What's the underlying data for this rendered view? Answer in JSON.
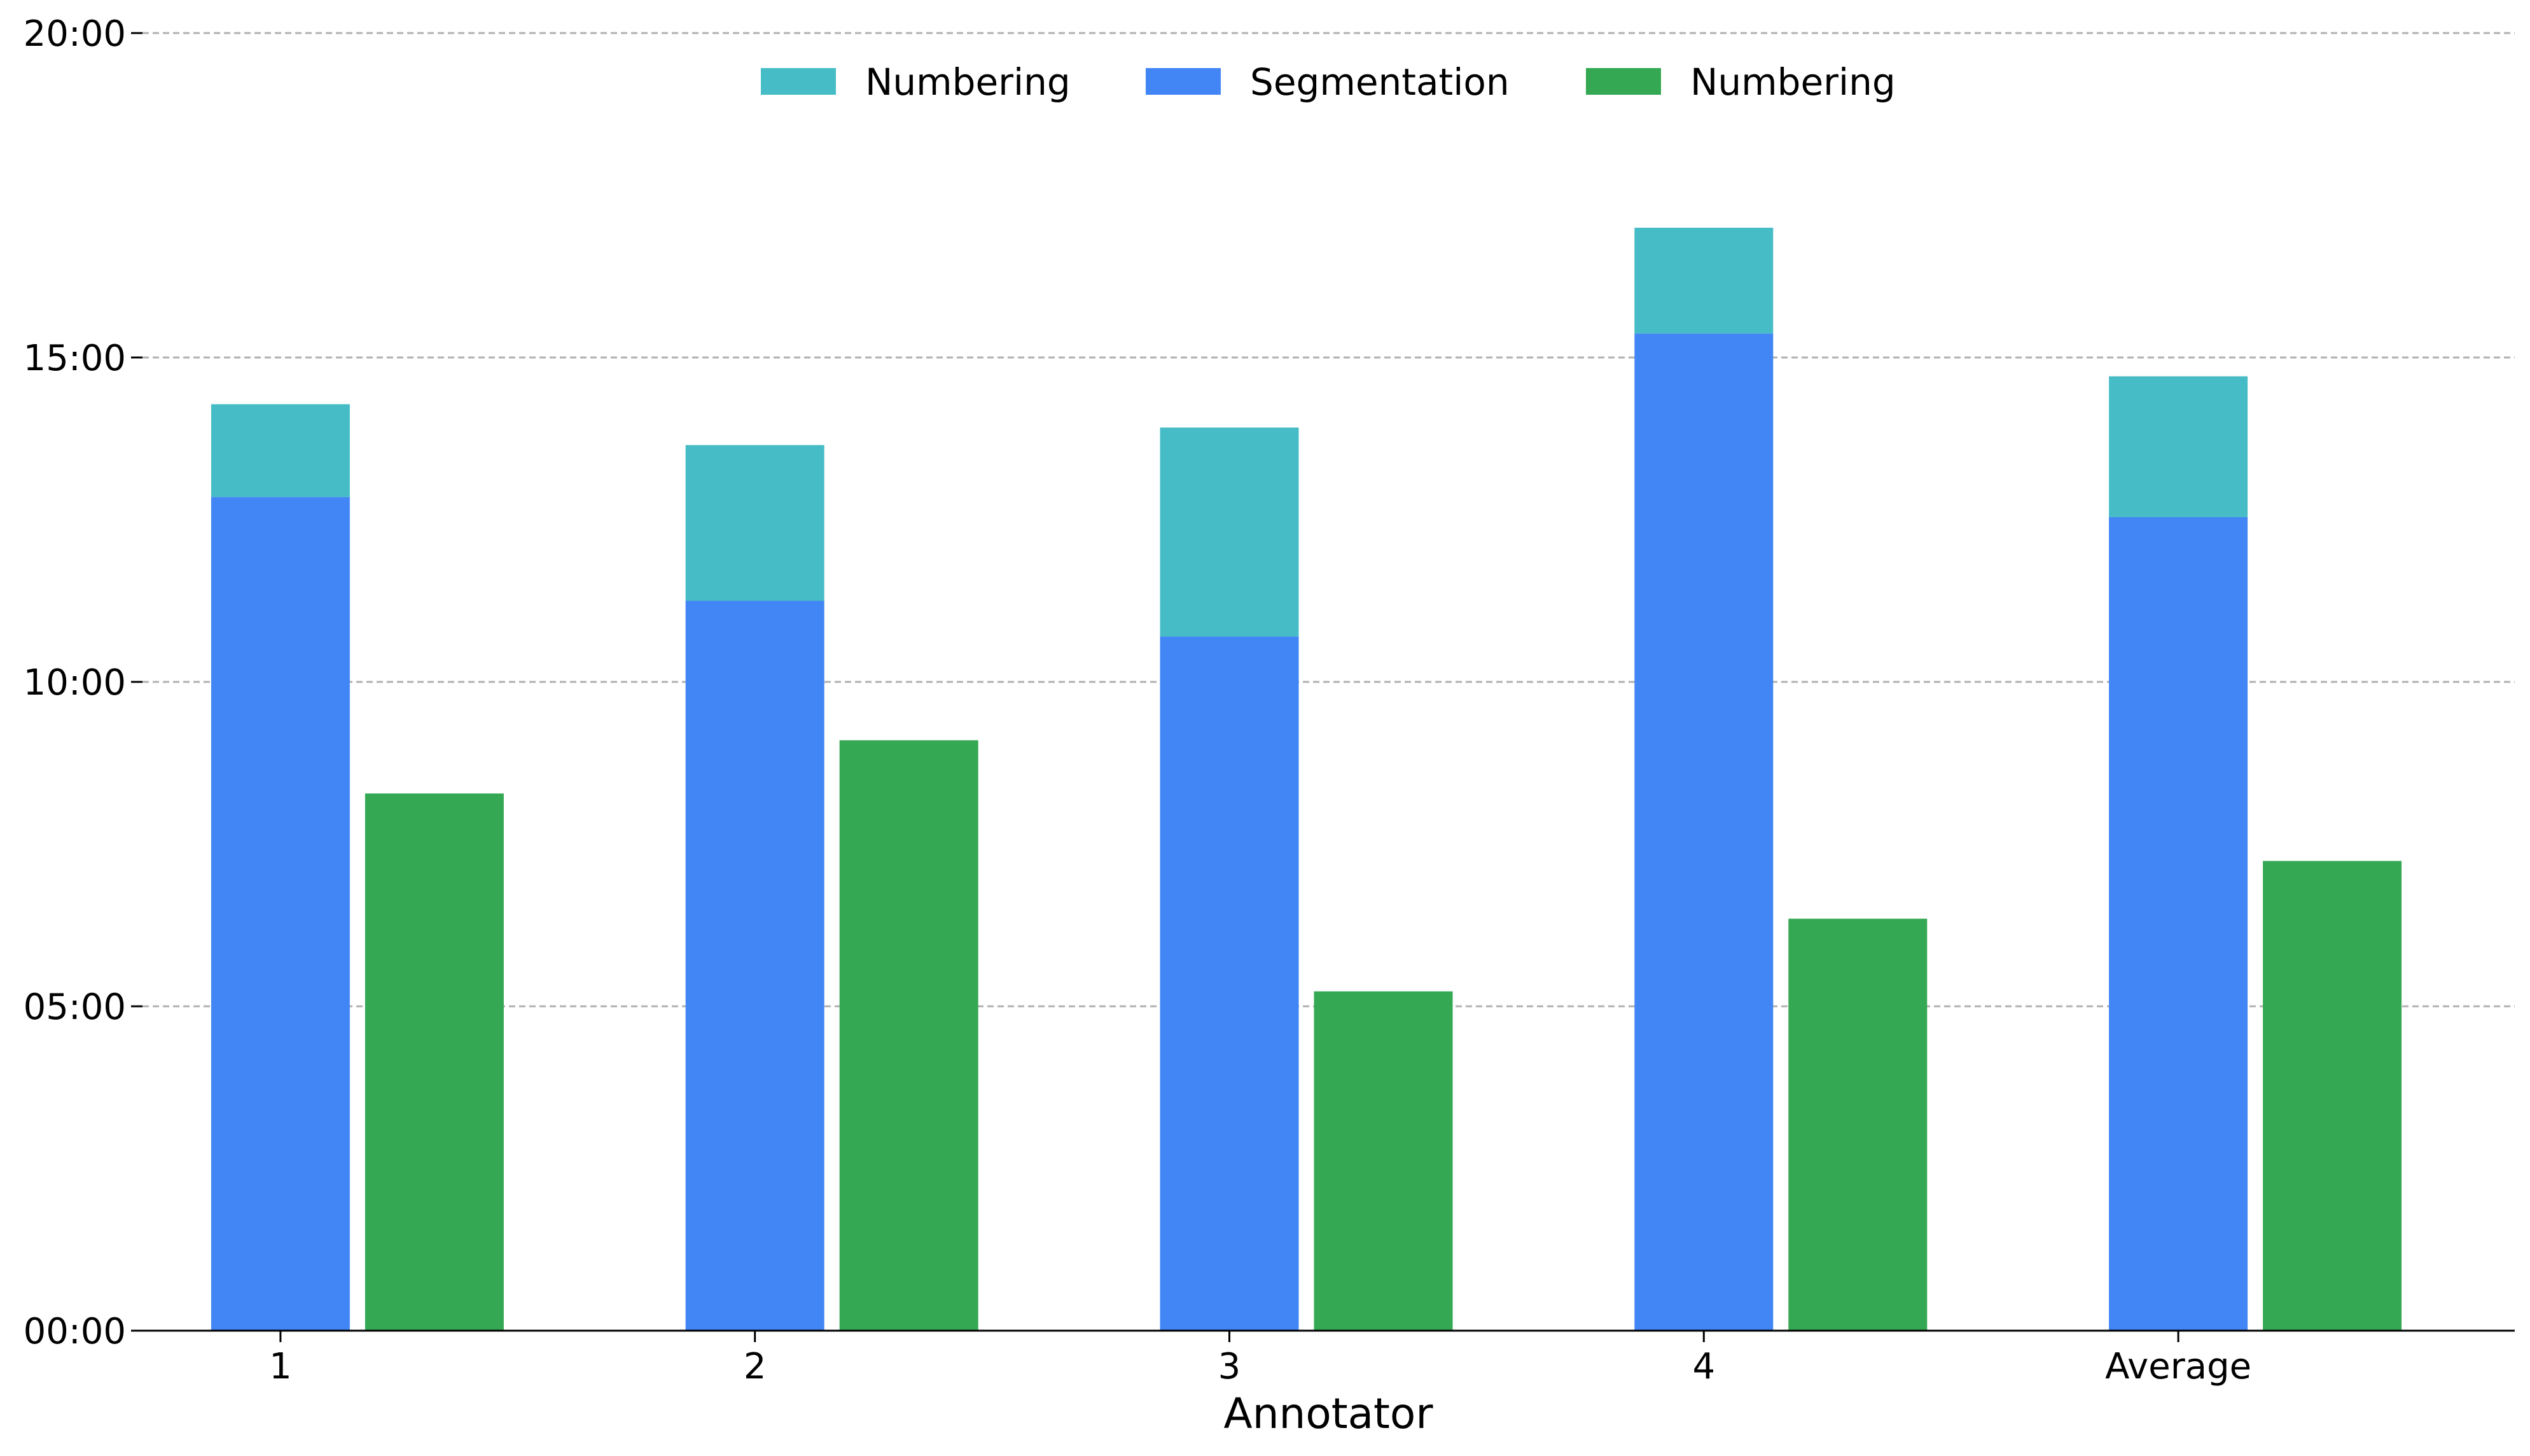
{
  "chart_data": {
    "type": "bar",
    "xlabel": "Annotator",
    "ylabel": "",
    "y_unit": "minutes (mm:ss)",
    "categories": [
      "1",
      "2",
      "3",
      "4",
      "Average"
    ],
    "ylim": [
      0,
      20
    ],
    "y_ticks": [
      0,
      5,
      10,
      15,
      20
    ],
    "y_tick_labels": [
      "00:00",
      "05:00",
      "10:00",
      "15:00",
      "20:00"
    ],
    "grid": "horizontal dashed",
    "legend_placement": "top-center",
    "stacks": [
      {
        "stack": "left",
        "series": [
          {
            "name": "Segmentation",
            "color": "#4285f4",
            "values": [
              12.85,
              11.25,
              10.7,
              15.37,
              12.54
            ]
          },
          {
            "name": "Numbering",
            "color": "#46bdc6",
            "values": [
              1.43,
              2.4,
              3.22,
              1.63,
              2.17
            ]
          }
        ]
      },
      {
        "stack": "right",
        "series": [
          {
            "name": "Numbering",
            "color": "#34a853",
            "values": [
              8.28,
              9.1,
              5.23,
              6.35,
              7.24
            ]
          }
        ]
      }
    ],
    "legend": [
      {
        "label": "Numbering",
        "color": "#46bdc6"
      },
      {
        "label": "Segmentation",
        "color": "#4285f4"
      },
      {
        "label": "Numbering",
        "color": "#34a853"
      }
    ]
  }
}
